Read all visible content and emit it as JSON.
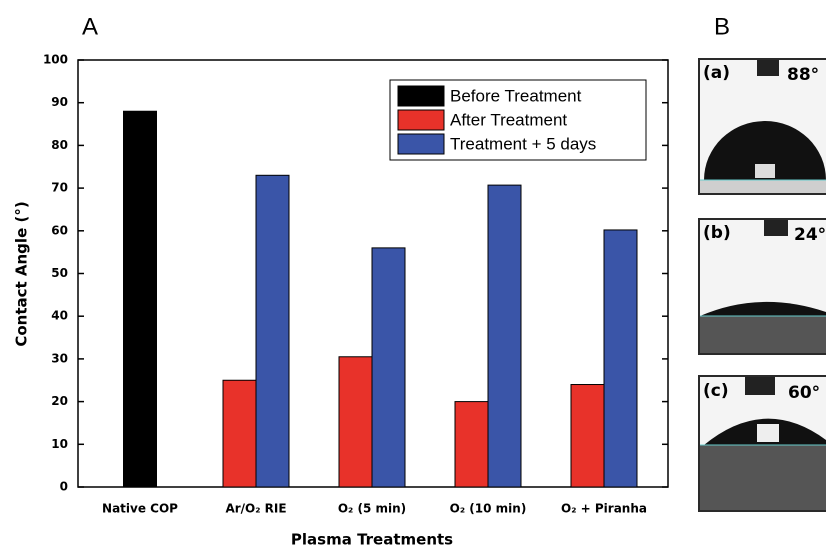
{
  "panel_labels": [
    "A",
    "B"
  ],
  "chart_data": {
    "type": "bar",
    "xlabel": "Plasma Treatments",
    "ylabel": "Contact Angle (°)",
    "categories": [
      "Native COP",
      "Ar/O₂ RIE",
      "O₂ (5 min)",
      "O₂ (10 min)",
      "O₂ + Piranha"
    ],
    "series": [
      {
        "name": "Before Treatment",
        "color": "#000000",
        "values": [
          88,
          null,
          null,
          null,
          null
        ]
      },
      {
        "name": "After Treatment",
        "color": "#e8322a",
        "values": [
          null,
          25,
          30.5,
          20,
          24
        ]
      },
      {
        "name": "Treatment + 5 days",
        "color": "#3a55a8",
        "values": [
          null,
          73,
          56,
          70.7,
          60.2
        ]
      }
    ],
    "ylim": [
      0,
      100
    ],
    "yticks": [
      0,
      10,
      20,
      30,
      40,
      50,
      60,
      70,
      80,
      90,
      100
    ],
    "legend": "upper right"
  },
  "images": [
    {
      "label": "(a)",
      "angle": "88°"
    },
    {
      "label": "(b)",
      "angle": "24°"
    },
    {
      "label": "(c)",
      "angle": "60°"
    }
  ]
}
